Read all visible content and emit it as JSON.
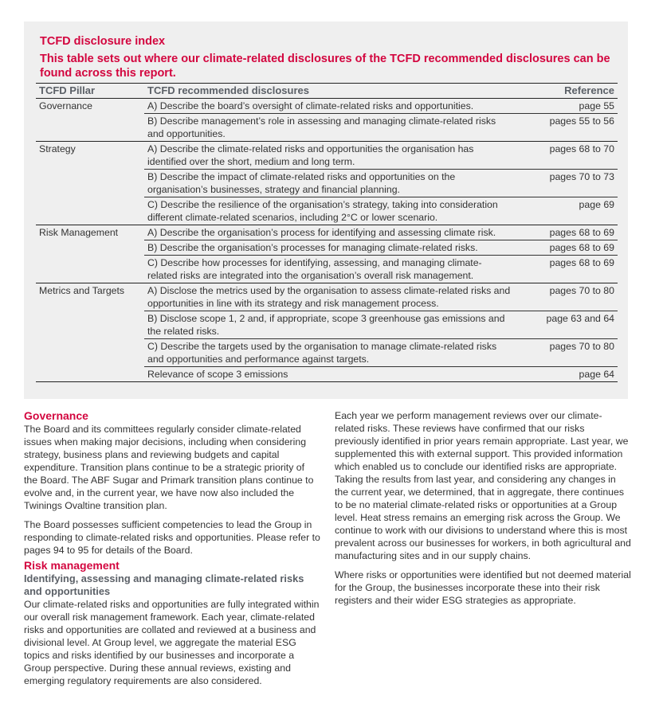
{
  "index": {
    "title": "TCFD disclosure index",
    "subtitle": "This table sets out where our climate-related disclosures of the TCFD recommended disclosures can be found across this report.",
    "headers": [
      "TCFD Pillar",
      "TCFD recommended disclosures",
      "Reference"
    ],
    "rows": [
      {
        "pillar": "Governance",
        "disclosure": "A) Describe the board’s oversight of climate-related risks and opportunities.",
        "ref": "page 55"
      },
      {
        "pillar": "",
        "disclosure": "B) Describe management’s role in assessing and managing climate-related risks and opportunities.",
        "ref": "pages 55 to 56"
      },
      {
        "pillar": "Strategy",
        "disclosure": "A) Describe the climate-related risks and opportunities the organisation has identified over the short, medium and long term.",
        "ref": "pages 68 to 70"
      },
      {
        "pillar": "",
        "disclosure": "B) Describe the impact of climate-related risks and opportunities on the organisation’s businesses, strategy and financial planning.",
        "ref": "pages 70 to 73"
      },
      {
        "pillar": "",
        "disclosure": "C) Describe the resilience of the organisation’s strategy, taking into consideration different climate-related scenarios, including 2°C or lower scenario.",
        "ref": "page 69"
      },
      {
        "pillar": "Risk Management",
        "disclosure": "A) Describe the organisation’s process for identifying and assessing climate risk.",
        "ref": "pages 68 to 69"
      },
      {
        "pillar": "",
        "disclosure": "B) Describe the organisation’s processes for managing climate-related risks.",
        "ref": "pages 68 to 69"
      },
      {
        "pillar": "",
        "disclosure": "C) Describe how processes for identifying, assessing, and managing climate-related risks are integrated into the organisation’s overall risk management.",
        "ref": "pages 68 to 69"
      },
      {
        "pillar": "Metrics and Targets",
        "disclosure": "A) Disclose the metrics used by the organisation to assess climate-related risks and opportunities in line with its strategy and risk management process.",
        "ref": "pages 70 to 80"
      },
      {
        "pillar": "",
        "disclosure": "B) Disclose scope 1, 2 and, if appropriate, scope 3 greenhouse gas emissions and the related risks.",
        "ref": "page 63 and 64"
      },
      {
        "pillar": "",
        "disclosure": "C) Describe the targets used by the organisation to manage climate-related risks and opportunities and performance against targets.",
        "ref": "pages 70 to 80"
      },
      {
        "pillar": "",
        "disclosure": "Relevance of scope 3 emissions",
        "ref": "page 64"
      }
    ]
  },
  "left": {
    "gov_heading": "Governance",
    "gov_p1": "The Board and its committees regularly consider climate-related issues when making major decisions, including when considering strategy, business plans and reviewing budgets and capital expenditure. Transition plans continue to be a strategic priority of the Board. The ABF Sugar and Primark transition plans continue to evolve and, in the current year, we have now also included the Twinings Ovaltine transition plan.",
    "gov_p2": "The Board possesses sufficient competencies to lead the Group in responding to climate-related risks and opportunities. Please refer to pages 94 to 95 for details of the Board.",
    "risk_heading": "Risk management",
    "risk_sub": "Identifying, assessing and managing climate-related risks and opportunities",
    "risk_p1": "Our climate-related risks and opportunities are fully integrated within our overall risk management framework. Each year, climate-related risks and opportunities are collated and reviewed at a business and divisional level. At Group level, we aggregate the material ESG topics and risks identified by our businesses and incorporate a Group perspective. During these annual reviews, existing and emerging regulatory requirements are also considered."
  },
  "right": {
    "p1": "Each year we perform management reviews over our climate-related risks. These reviews have confirmed that our risks previously identified in prior years remain appropriate. Last year, we supplemented this with external support. This provided information which enabled us to conclude our identified risks are appropriate. Taking the results from last year, and considering any changes in the current year, we determined, that in aggregate, there continues to be no material climate-related risks or opportunities at a Group level. Heat stress remains an emerging risk across the Group. We continue to work with our divisions to understand where this is most prevalent across our businesses for workers, in both agricultural and manufacturing sites and in our supply chains.",
    "p2": "Where risks or opportunities were identified but not deemed material for the Group, the businesses incorporate these into their risk registers and their wider ESG strategies as appropriate."
  }
}
